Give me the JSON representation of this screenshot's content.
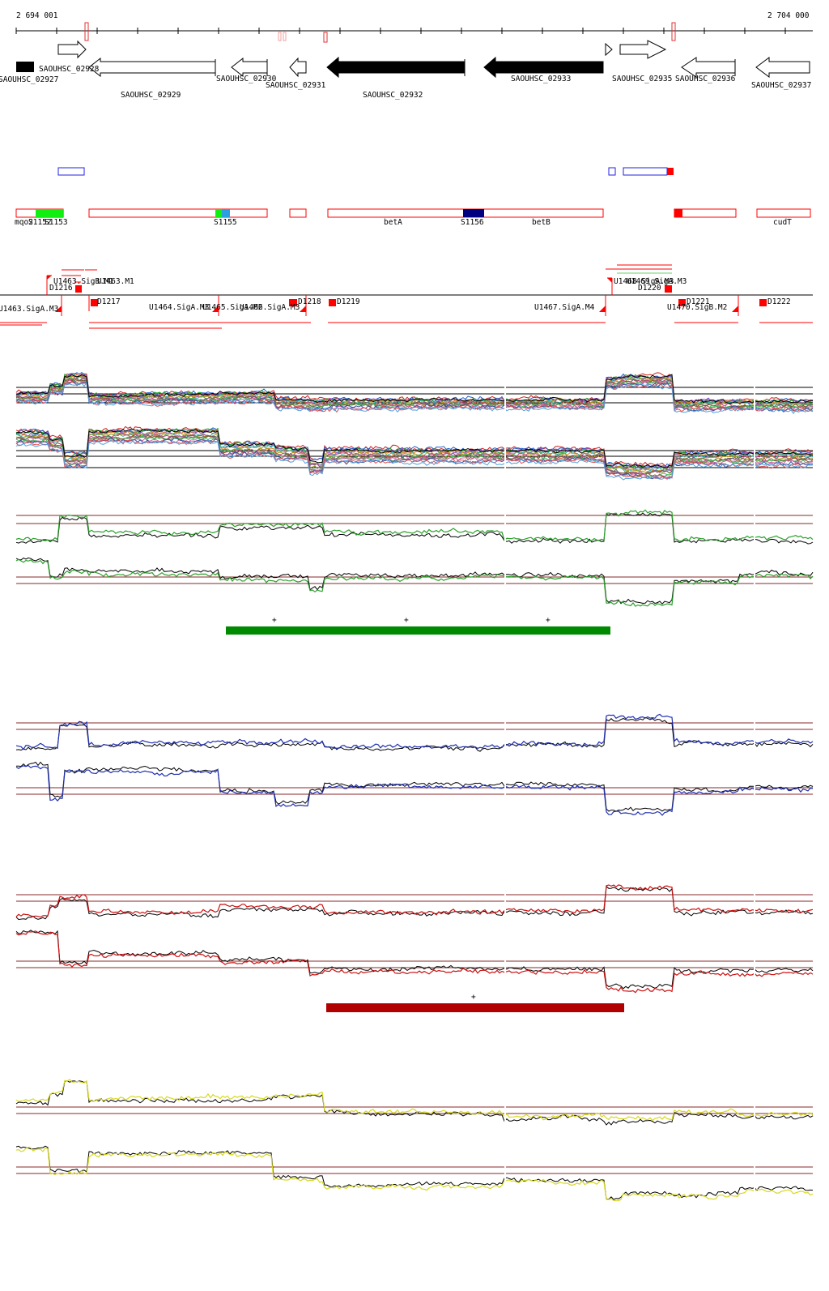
{
  "coordinates": {
    "start_label": "2 694 001",
    "end_label": "2 704 000",
    "start": 2694001,
    "end": 2704000
  },
  "genes": {
    "labels": [
      "SAOUHSC_02927",
      "SAOUHSC_02928",
      "SAOUHSC_02929",
      "SAOUHSC_02930",
      "SAOUHSC_02931",
      "SAOUHSC_02932",
      "SAOUHSC_02933",
      "SAOUHSC_02935",
      "SAOUHSC_02936",
      "SAOUHSC_02937"
    ]
  },
  "segments": {
    "labels": [
      "mqo2",
      "S1152",
      "S1153",
      "S1155",
      "betA",
      "S1156",
      "betB",
      "cudT"
    ]
  },
  "transcripts": {
    "labels": [
      "U1463.SigA.M3",
      "U1463.SigB.M1",
      "D1216",
      "U1463.M1",
      "D1217",
      "U1464.SigA.M3",
      "U1465.SigA.M2",
      "U1466.SigA.M3",
      "D1218",
      "D1219",
      "U1467.SigA.M4",
      "U1468.SigA.M3",
      "U1469.SigA.M3",
      "D1220",
      "D1221",
      "U1470.SigB.M2",
      "D1222"
    ]
  },
  "tracks": {
    "marks": [
      "+",
      "+",
      "+",
      "+"
    ]
  },
  "colors": {
    "gene_outline": "#000000",
    "segment_outline": "#ff0000",
    "green_band": "#008a00",
    "dark_red_band": "#b00000",
    "blue_track": "#1f2fb0",
    "red_track": "#cc1010",
    "yellow_track": "#d8d820",
    "green_track": "#2aa02a"
  }
}
